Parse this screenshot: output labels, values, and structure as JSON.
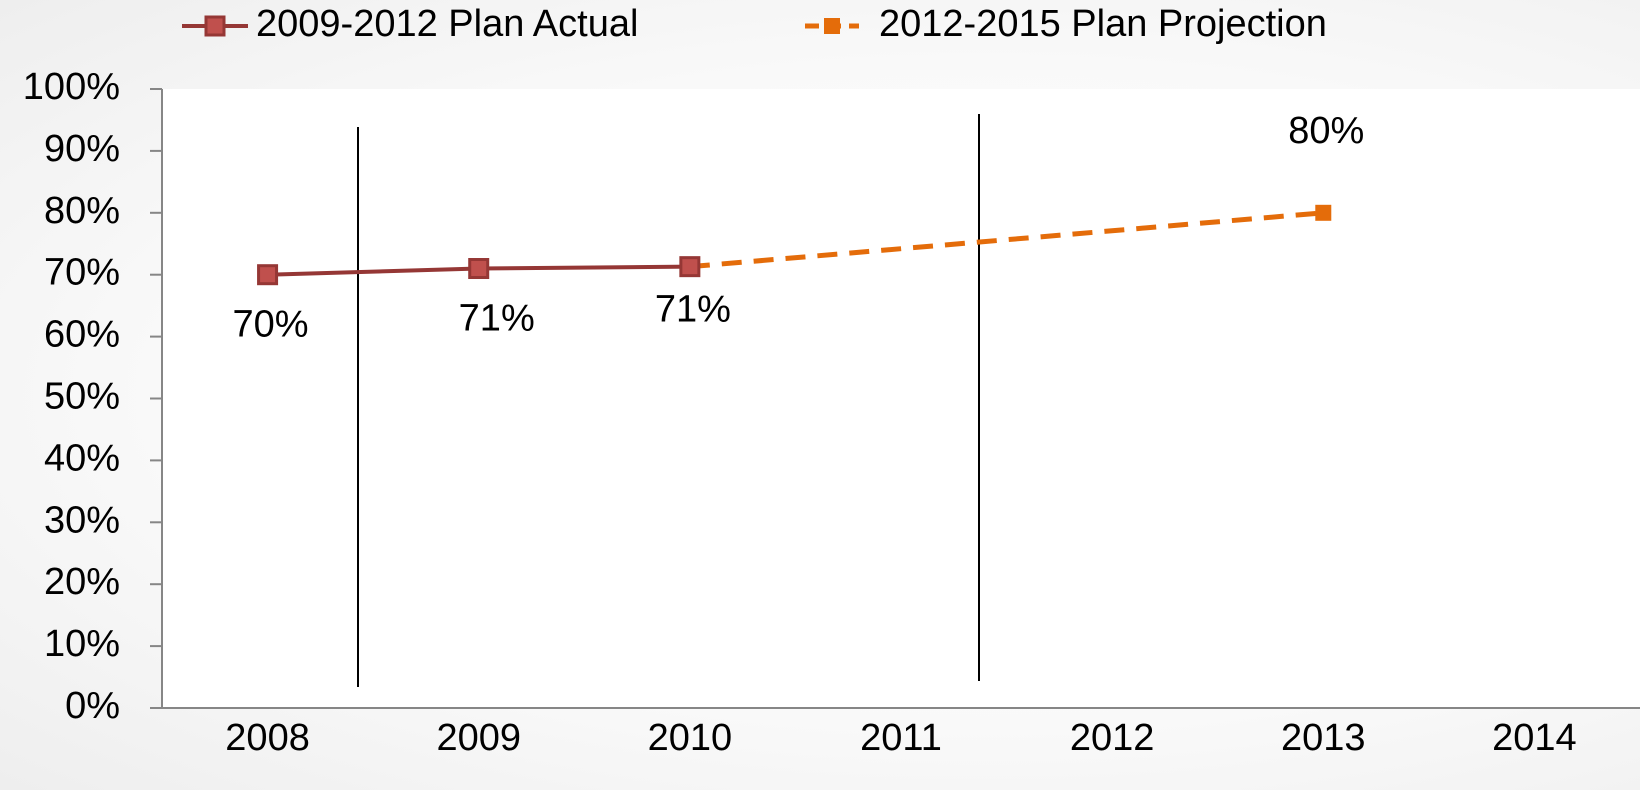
{
  "chart_data": {
    "type": "line",
    "series": [
      {
        "name": "2009-2012 Plan Actual",
        "color": "#953735",
        "marker_fill": "#c0504d",
        "dashed": false,
        "x": [
          2008,
          2009,
          2010
        ],
        "values": [
          70,
          71,
          71.3
        ],
        "value_labels": [
          "70%",
          "71%",
          "71%"
        ]
      },
      {
        "name": "2012-2015 Plan Projection",
        "color": "#e46c0a",
        "marker_fill": "#e46c0a",
        "dashed": true,
        "x": [
          2010,
          2013
        ],
        "values": [
          71.3,
          80
        ],
        "value_labels": [
          null,
          "80%"
        ]
      }
    ],
    "xlim": [
      2007.5,
      2014.5
    ],
    "xticks": [
      2008,
      2009,
      2010,
      2011,
      2012,
      2013,
      2014
    ],
    "ylim": [
      0,
      100
    ],
    "yticks": [
      {
        "value": 0,
        "label": "0%"
      },
      {
        "value": 10,
        "label": "10%"
      },
      {
        "value": 20,
        "label": "20%"
      },
      {
        "value": 30,
        "label": "30%"
      },
      {
        "value": 40,
        "label": "40%"
      },
      {
        "value": 50,
        "label": "50%"
      },
      {
        "value": 60,
        "label": "60%"
      },
      {
        "value": 70,
        "label": "70%"
      },
      {
        "value": 80,
        "label": "80%"
      },
      {
        "value": 90,
        "label": "90%"
      },
      {
        "value": 100,
        "label": "100%"
      }
    ],
    "grid": false,
    "legend": "top"
  }
}
